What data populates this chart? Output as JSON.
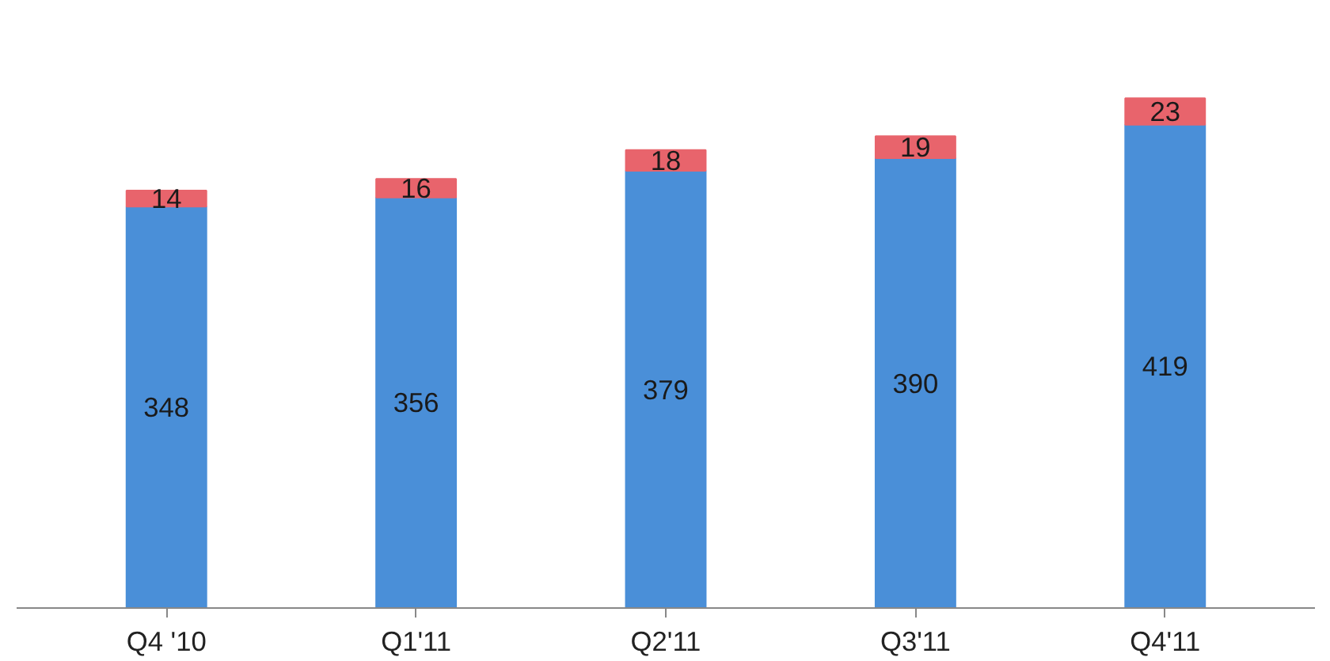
{
  "chart_data": {
    "type": "bar",
    "stacked": true,
    "data_labels": true,
    "categories": [
      "Q4 '10",
      "Q1'11",
      "Q2'11",
      "Q3'11",
      "Q4'11"
    ],
    "series": [
      {
        "color": "#4a8fd8",
        "values": [
          348,
          356,
          379,
          390,
          419
        ]
      },
      {
        "color": "#e8646c",
        "values": [
          14,
          16,
          18,
          19,
          23
        ]
      }
    ],
    "tick_labels": "x",
    "grid": false
  }
}
